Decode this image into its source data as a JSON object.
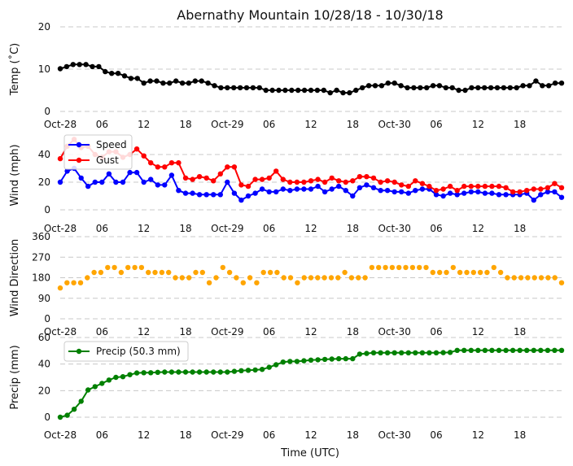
{
  "chart_data": [
    {
      "type": "line",
      "id": "temp",
      "ylabel": "Temp (˚C)",
      "ylim": [
        0,
        20
      ],
      "yticks": [
        0,
        10,
        20
      ],
      "series": [
        {
          "name": "Temp",
          "color": "#000000",
          "values": [
            10.1,
            10.6,
            11.1,
            11.1,
            11.1,
            10.6,
            10.6,
            9.4,
            9.0,
            9.0,
            8.4,
            7.8,
            7.8,
            6.7,
            7.2,
            7.2,
            6.7,
            6.7,
            7.2,
            6.7,
            6.7,
            7.2,
            7.2,
            6.7,
            6.1,
            5.6,
            5.6,
            5.6,
            5.6,
            5.6,
            5.6,
            5.6,
            5.0,
            5.0,
            5.0,
            5.0,
            5.0,
            5.0,
            5.0,
            5.0,
            5.0,
            5.0,
            4.4,
            5.0,
            4.4,
            4.4,
            5.0,
            5.6,
            6.1,
            6.1,
            6.1,
            6.7,
            6.7,
            6.1,
            5.6,
            5.6,
            5.6,
            5.6,
            6.1,
            6.1,
            5.6,
            5.6,
            5.0,
            5.0,
            5.6,
            5.6,
            5.6,
            5.6,
            5.6,
            5.6,
            5.6,
            5.6,
            6.1,
            6.1,
            7.2,
            6.1,
            6.1,
            6.7,
            6.7
          ]
        }
      ]
    },
    {
      "type": "line",
      "id": "wind",
      "ylabel": "Wind (mph)",
      "ylim": [
        0,
        50
      ],
      "yticks": [
        0,
        20,
        40
      ],
      "legend": {
        "placement": "top-left"
      },
      "series": [
        {
          "name": "Speed",
          "color": "#0000ff",
          "values": [
            20,
            28,
            30,
            23,
            17,
            20,
            20,
            26,
            20,
            20,
            27,
            27,
            20,
            22,
            18,
            18,
            25,
            14,
            12,
            12,
            11,
            11,
            11,
            11,
            20,
            12,
            7,
            10,
            12,
            15,
            13,
            13,
            15,
            14,
            15,
            15,
            15,
            17,
            13,
            15,
            17,
            14,
            10,
            16,
            18,
            16,
            14,
            14,
            13,
            13,
            12,
            14,
            15,
            15,
            11,
            10,
            12,
            11,
            12,
            13,
            13,
            12,
            12,
            11,
            11,
            11,
            11,
            12,
            7,
            11,
            13,
            13,
            9
          ]
        },
        {
          "name": "Gust",
          "color": "#ff0000",
          "values": [
            37,
            46,
            51,
            45,
            46,
            40,
            38,
            42,
            42,
            38,
            40,
            44,
            39,
            34,
            31,
            31,
            34,
            34,
            23,
            22,
            24,
            23,
            21,
            26,
            31,
            31,
            18,
            17,
            22,
            22,
            23,
            28,
            22,
            20,
            20,
            20,
            21,
            22,
            20,
            23,
            21,
            20,
            21,
            24,
            24,
            23,
            20,
            21,
            20,
            18,
            17,
            21,
            19,
            17,
            14,
            15,
            17,
            14,
            17,
            17,
            17,
            17,
            17,
            17,
            16,
            13,
            13,
            14,
            15,
            15,
            16,
            19,
            16
          ]
        }
      ]
    },
    {
      "type": "scatter",
      "id": "wind-direction",
      "ylabel": "Wind Direction",
      "ylim": [
        0,
        360
      ],
      "yticks": [
        0,
        90,
        180,
        270,
        360
      ],
      "series": [
        {
          "name": "Direction",
          "color": "#ffa500",
          "values": [
            135,
            158,
            158,
            158,
            180,
            203,
            203,
            225,
            225,
            203,
            225,
            225,
            225,
            203,
            203,
            203,
            203,
            180,
            180,
            180,
            203,
            203,
            158,
            180,
            225,
            203,
            180,
            158,
            180,
            158,
            203,
            203,
            203,
            180,
            180,
            158,
            180,
            180,
            180,
            180,
            180,
            180,
            203,
            180,
            180,
            180,
            225,
            225,
            225,
            225,
            225,
            225,
            225,
            225,
            225,
            203,
            203,
            203,
            225,
            203,
            203,
            203,
            203,
            203,
            225,
            203,
            180,
            180,
            180,
            180,
            180,
            180,
            180,
            180,
            158
          ]
        }
      ]
    },
    {
      "type": "line",
      "id": "precip",
      "ylabel": "Precip (mm)",
      "xlabel": "Time (UTC)",
      "ylim": [
        0,
        60
      ],
      "yticks": [
        0,
        20,
        40,
        60
      ],
      "legend": {
        "placement": "top-left"
      },
      "series": [
        {
          "name": "Precip (50.3 mm)",
          "color": "#008000",
          "values": [
            0,
            1.5,
            6,
            12,
            20.5,
            23,
            25.5,
            28,
            30,
            30.5,
            32,
            33.3,
            33.5,
            33.5,
            33.8,
            34,
            34,
            34,
            34,
            34,
            34,
            34,
            34,
            34,
            34,
            34.5,
            35,
            35.3,
            35.6,
            36,
            37.6,
            39.5,
            41.5,
            42,
            42,
            42.5,
            43,
            43.2,
            43.5,
            43.8,
            44,
            44,
            44,
            47.5,
            48,
            48.5,
            48.5,
            48.5,
            48.5,
            48.5,
            48.5,
            48.5,
            48.5,
            48.5,
            48.5,
            48.6,
            48.8,
            50.3,
            50.3,
            50.3,
            50.3,
            50.3,
            50.3,
            50.3,
            50.3,
            50.3,
            50.3,
            50.3,
            50.3,
            50.3,
            50.3,
            50.3,
            50.3
          ]
        }
      ]
    }
  ],
  "chart_info": {
    "title": "Abernathy Mountain 10/28/18 - 10/30/18",
    "xlabel": "Time (UTC)",
    "x_range_hours": [
      0,
      72
    ],
    "x_ticks": [
      {
        "hour": 0,
        "label": "Oct-28"
      },
      {
        "hour": 6,
        "label": "06"
      },
      {
        "hour": 12,
        "label": "12"
      },
      {
        "hour": 18,
        "label": "18"
      },
      {
        "hour": 24,
        "label": "Oct-29"
      },
      {
        "hour": 30,
        "label": "06"
      },
      {
        "hour": 36,
        "label": "12"
      },
      {
        "hour": 42,
        "label": "18"
      },
      {
        "hour": 48,
        "label": "Oct-30"
      },
      {
        "hour": 54,
        "label": "06"
      },
      {
        "hour": 60,
        "label": "12"
      },
      {
        "hour": 66,
        "label": "18"
      }
    ]
  }
}
